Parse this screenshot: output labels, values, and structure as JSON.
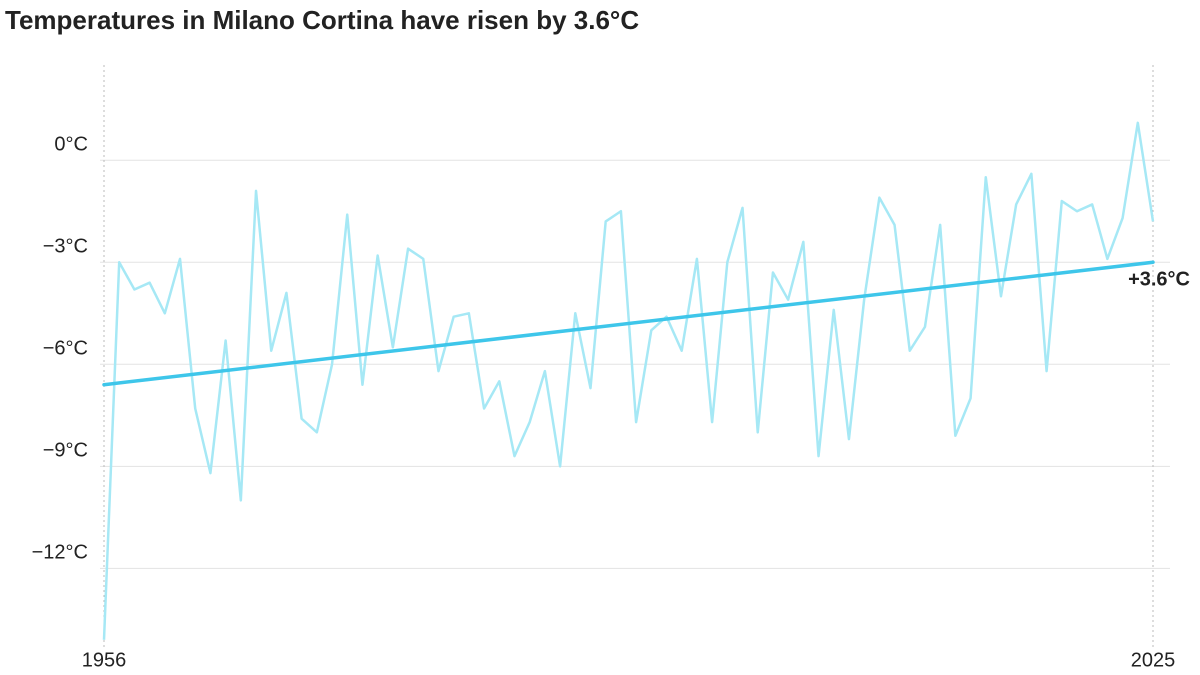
{
  "chart_data": {
    "type": "line",
    "title": "Temperatures in Milano Cortina have risen by 3.6°C",
    "x": [
      1956,
      1957,
      1958,
      1959,
      1960,
      1961,
      1962,
      1963,
      1964,
      1965,
      1966,
      1967,
      1968,
      1969,
      1970,
      1971,
      1972,
      1973,
      1974,
      1975,
      1976,
      1977,
      1978,
      1979,
      1980,
      1981,
      1982,
      1983,
      1984,
      1985,
      1986,
      1987,
      1988,
      1989,
      1990,
      1991,
      1992,
      1993,
      1994,
      1995,
      1996,
      1997,
      1998,
      1999,
      2000,
      2001,
      2002,
      2003,
      2004,
      2005,
      2006,
      2007,
      2008,
      2009,
      2010,
      2011,
      2012,
      2013,
      2014,
      2015,
      2016,
      2017,
      2018,
      2019,
      2020,
      2021,
      2022,
      2023,
      2024,
      2025
    ],
    "series": [
      {
        "color": "#a6e8f5",
        "values": [
          -14.1,
          -3.0,
          -3.8,
          -3.6,
          -4.5,
          -2.9,
          -7.3,
          -9.2,
          -5.3,
          -10.0,
          -0.9,
          -5.6,
          -3.9,
          -7.6,
          -8.0,
          -6.0,
          -1.6,
          -6.6,
          -2.8,
          -5.5,
          -2.6,
          -2.9,
          -6.2,
          -4.6,
          -4.5,
          -7.3,
          -6.5,
          -8.7,
          -7.7,
          -6.2,
          -9.0,
          -4.5,
          -6.7,
          -1.8,
          -1.5,
          -7.7,
          -5.0,
          -4.6,
          -5.6,
          -2.9,
          -7.7,
          -3.0,
          -1.4,
          -8.0,
          -3.3,
          -4.1,
          -2.4,
          -8.7,
          -4.4,
          -8.2,
          -4.1,
          -1.1,
          -1.9,
          -5.6,
          -4.9,
          -1.9,
          -8.1,
          -7.0,
          -0.5,
          -4.0,
          -1.3,
          -0.4,
          -6.2,
          -1.2,
          -1.5,
          -1.3,
          -2.9,
          -1.7,
          1.1,
          -1.8
        ]
      }
    ],
    "trend": {
      "color": "#3ec6ea",
      "start": -6.6,
      "end": -3.0,
      "label": "+3.6°C"
    },
    "xlim": [
      1956,
      2025
    ],
    "xticks": [
      1956,
      2025
    ],
    "ylim": [
      -14.4,
      2.8
    ],
    "yticks": [
      {
        "value": 0,
        "label": "0°C"
      },
      {
        "value": -3,
        "label": "−3°C"
      },
      {
        "value": -6,
        "label": "−6°C"
      },
      {
        "value": -9,
        "label": "−9°C"
      },
      {
        "value": -12,
        "label": "−12°C"
      }
    ],
    "grid": true
  }
}
